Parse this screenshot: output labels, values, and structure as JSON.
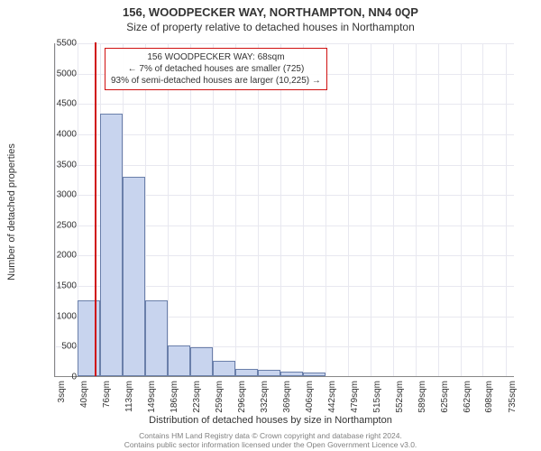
{
  "header": {
    "title": "156, WOODPECKER WAY, NORTHAMPTON, NN4 0QP",
    "subtitle": "Size of property relative to detached houses in Northampton"
  },
  "chart": {
    "type": "histogram",
    "ylabel": "Number of detached properties",
    "xlabel": "Distribution of detached houses by size in Northampton",
    "ylim": [
      0,
      5500
    ],
    "ytick_step": 500,
    "yticks": [
      0,
      500,
      1000,
      1500,
      2000,
      2500,
      3000,
      3500,
      4000,
      4500,
      5000,
      5500
    ],
    "xlim": [
      3,
      750
    ],
    "xticks": [
      3,
      40,
      76,
      113,
      149,
      186,
      223,
      259,
      296,
      332,
      369,
      406,
      442,
      479,
      515,
      552,
      589,
      625,
      662,
      698,
      735
    ],
    "xtick_suffix": "sqm",
    "bar_color": "#c8d4ee",
    "bar_border": "#6a7faa",
    "grid_color": "#e8e8f0",
    "background_color": "#ffffff",
    "bin_start": 3,
    "bin_width": 36.6,
    "values": [
      0,
      1250,
      4330,
      3280,
      1250,
      500,
      480,
      250,
      120,
      100,
      80,
      60,
      0,
      0,
      0,
      0,
      0,
      0,
      0,
      0
    ],
    "marker": {
      "x": 68,
      "color": "#d01010"
    },
    "annotation": {
      "line1": "156 WOODPECKER WAY: 68sqm",
      "line2": "← 7% of detached houses are smaller (725)",
      "line3": "93% of semi-detached houses are larger (10,225) →",
      "border_color": "#d01010"
    }
  },
  "attribution": {
    "line1": "Contains HM Land Registry data © Crown copyright and database right 2024.",
    "line2": "Contains public sector information licensed under the Open Government Licence v3.0."
  }
}
